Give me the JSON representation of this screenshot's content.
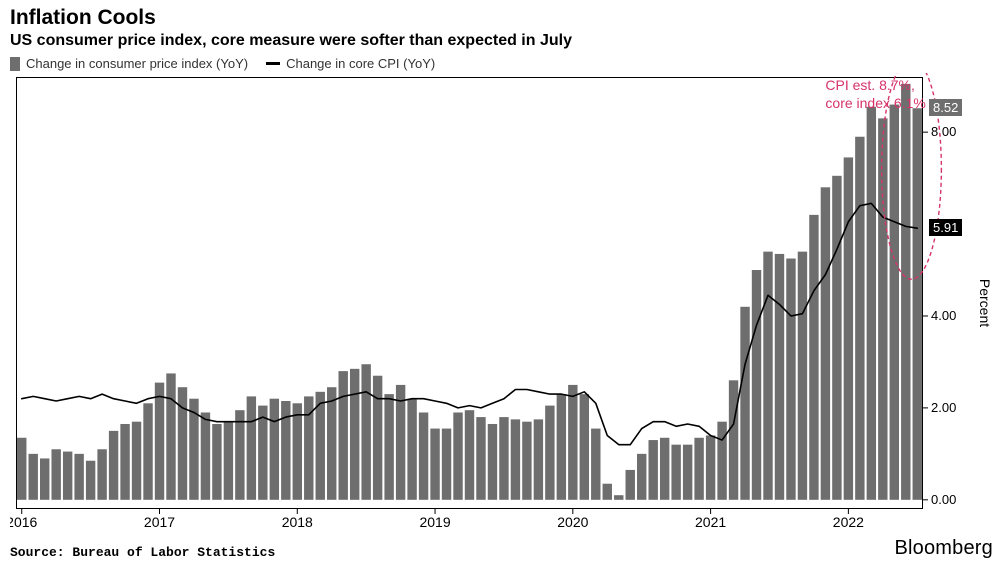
{
  "title": "Inflation Cools",
  "subtitle": "US consumer price index, core measure were softer than expected in July",
  "title_fontsize": 21,
  "subtitle_fontsize": 16,
  "title_color": "#000000",
  "subtitle_color": "#000000",
  "legend": {
    "items": [
      {
        "label": "Change in consumer price index (YoY)",
        "swatch_type": "bar",
        "swatch_color": "#6e6e6e",
        "swatch_w": 10,
        "swatch_h": 14
      },
      {
        "label": "Change in core CPI (YoY)",
        "swatch_type": "line",
        "swatch_color": "#000000",
        "swatch_w": 14,
        "swatch_h": 3
      }
    ],
    "text_color": "#333333"
  },
  "chart": {
    "type": "bar+line",
    "background_color": "#ffffff",
    "plot_border_color": "#000000",
    "plot_border_width": 1,
    "grid": false,
    "bar_color": "#6e6e6e",
    "bar_gap_ratio": 0.18,
    "line_color": "#000000",
    "line_width": 1.6,
    "y": {
      "min": -0.2,
      "max": 9.2,
      "ticks": [
        0.0,
        2.0,
        4.0,
        8.0
      ],
      "tick_labels": [
        "0.00",
        "2.00",
        "4.00",
        "8.00"
      ],
      "tick_color": "#000000",
      "tick_fontsize": 13,
      "title": "Percent",
      "title_fontsize": 14
    },
    "x": {
      "year_labels": [
        "2016",
        "2017",
        "2018",
        "2019",
        "2020",
        "2021",
        "2022"
      ],
      "months_per_year": 12,
      "first_year": 2016,
      "tick_fontsize": 14,
      "tick_color": "#000000"
    },
    "bars": [
      1.35,
      1.0,
      0.9,
      1.1,
      1.05,
      1.0,
      0.85,
      1.1,
      1.5,
      1.65,
      1.7,
      2.1,
      2.55,
      2.75,
      2.45,
      2.2,
      1.9,
      1.65,
      1.7,
      1.95,
      2.25,
      2.05,
      2.2,
      2.15,
      2.1,
      2.25,
      2.35,
      2.45,
      2.8,
      2.85,
      2.95,
      2.7,
      2.3,
      2.5,
      2.2,
      1.9,
      1.55,
      1.55,
      1.9,
      1.95,
      1.8,
      1.65,
      1.8,
      1.75,
      1.7,
      1.75,
      2.05,
      2.3,
      2.5,
      2.3,
      1.55,
      0.35,
      0.1,
      0.65,
      1.0,
      1.3,
      1.35,
      1.2,
      1.2,
      1.35,
      1.4,
      1.7,
      2.6,
      4.2,
      5.0,
      5.4,
      5.35,
      5.25,
      5.4,
      6.2,
      6.8,
      7.05,
      7.45,
      7.9,
      8.55,
      8.3,
      8.6,
      9.05,
      8.52
    ],
    "line": [
      2.2,
      2.25,
      2.2,
      2.15,
      2.2,
      2.25,
      2.2,
      2.3,
      2.2,
      2.15,
      2.1,
      2.2,
      2.25,
      2.2,
      2.0,
      1.9,
      1.75,
      1.7,
      1.7,
      1.7,
      1.7,
      1.8,
      1.7,
      1.8,
      1.85,
      1.85,
      2.1,
      2.15,
      2.25,
      2.3,
      2.35,
      2.2,
      2.2,
      2.15,
      2.2,
      2.2,
      2.15,
      2.1,
      2.0,
      2.05,
      2.0,
      2.1,
      2.2,
      2.4,
      2.4,
      2.35,
      2.3,
      2.3,
      2.25,
      2.35,
      2.1,
      1.4,
      1.2,
      1.2,
      1.55,
      1.7,
      1.7,
      1.6,
      1.65,
      1.6,
      1.4,
      1.3,
      1.65,
      2.95,
      3.8,
      4.45,
      4.25,
      4.0,
      4.05,
      4.55,
      4.9,
      5.45,
      6.05,
      6.4,
      6.45,
      6.15,
      6.05,
      5.95,
      5.91
    ],
    "callouts": [
      {
        "value_index": 78,
        "series": "bars",
        "label": "8.52",
        "bg": "#6e6e6e",
        "fg": "#ffffff"
      },
      {
        "value_index": 78,
        "series": "line",
        "label": "5.91",
        "bg": "#000000",
        "fg": "#ffffff"
      }
    ],
    "ellipse": {
      "color": "#d6336c",
      "stroke_width": 1.4,
      "dash": "4 3",
      "center_index": 77.5,
      "y_center": 7.2,
      "rx_bars": 2.6,
      "ry_value": 2.4
    },
    "annotation": {
      "text_lines": [
        "CPI est. 8.7%,",
        "core index 6.1%"
      ],
      "color": "#d6336c",
      "fontsize": 14,
      "x_index": 70.0,
      "y_value": 9.2
    }
  },
  "footer": {
    "source": "Source: Bureau of Labor Statistics",
    "brand": "Bloomberg",
    "source_color": "#000000",
    "brand_color": "#000000"
  }
}
